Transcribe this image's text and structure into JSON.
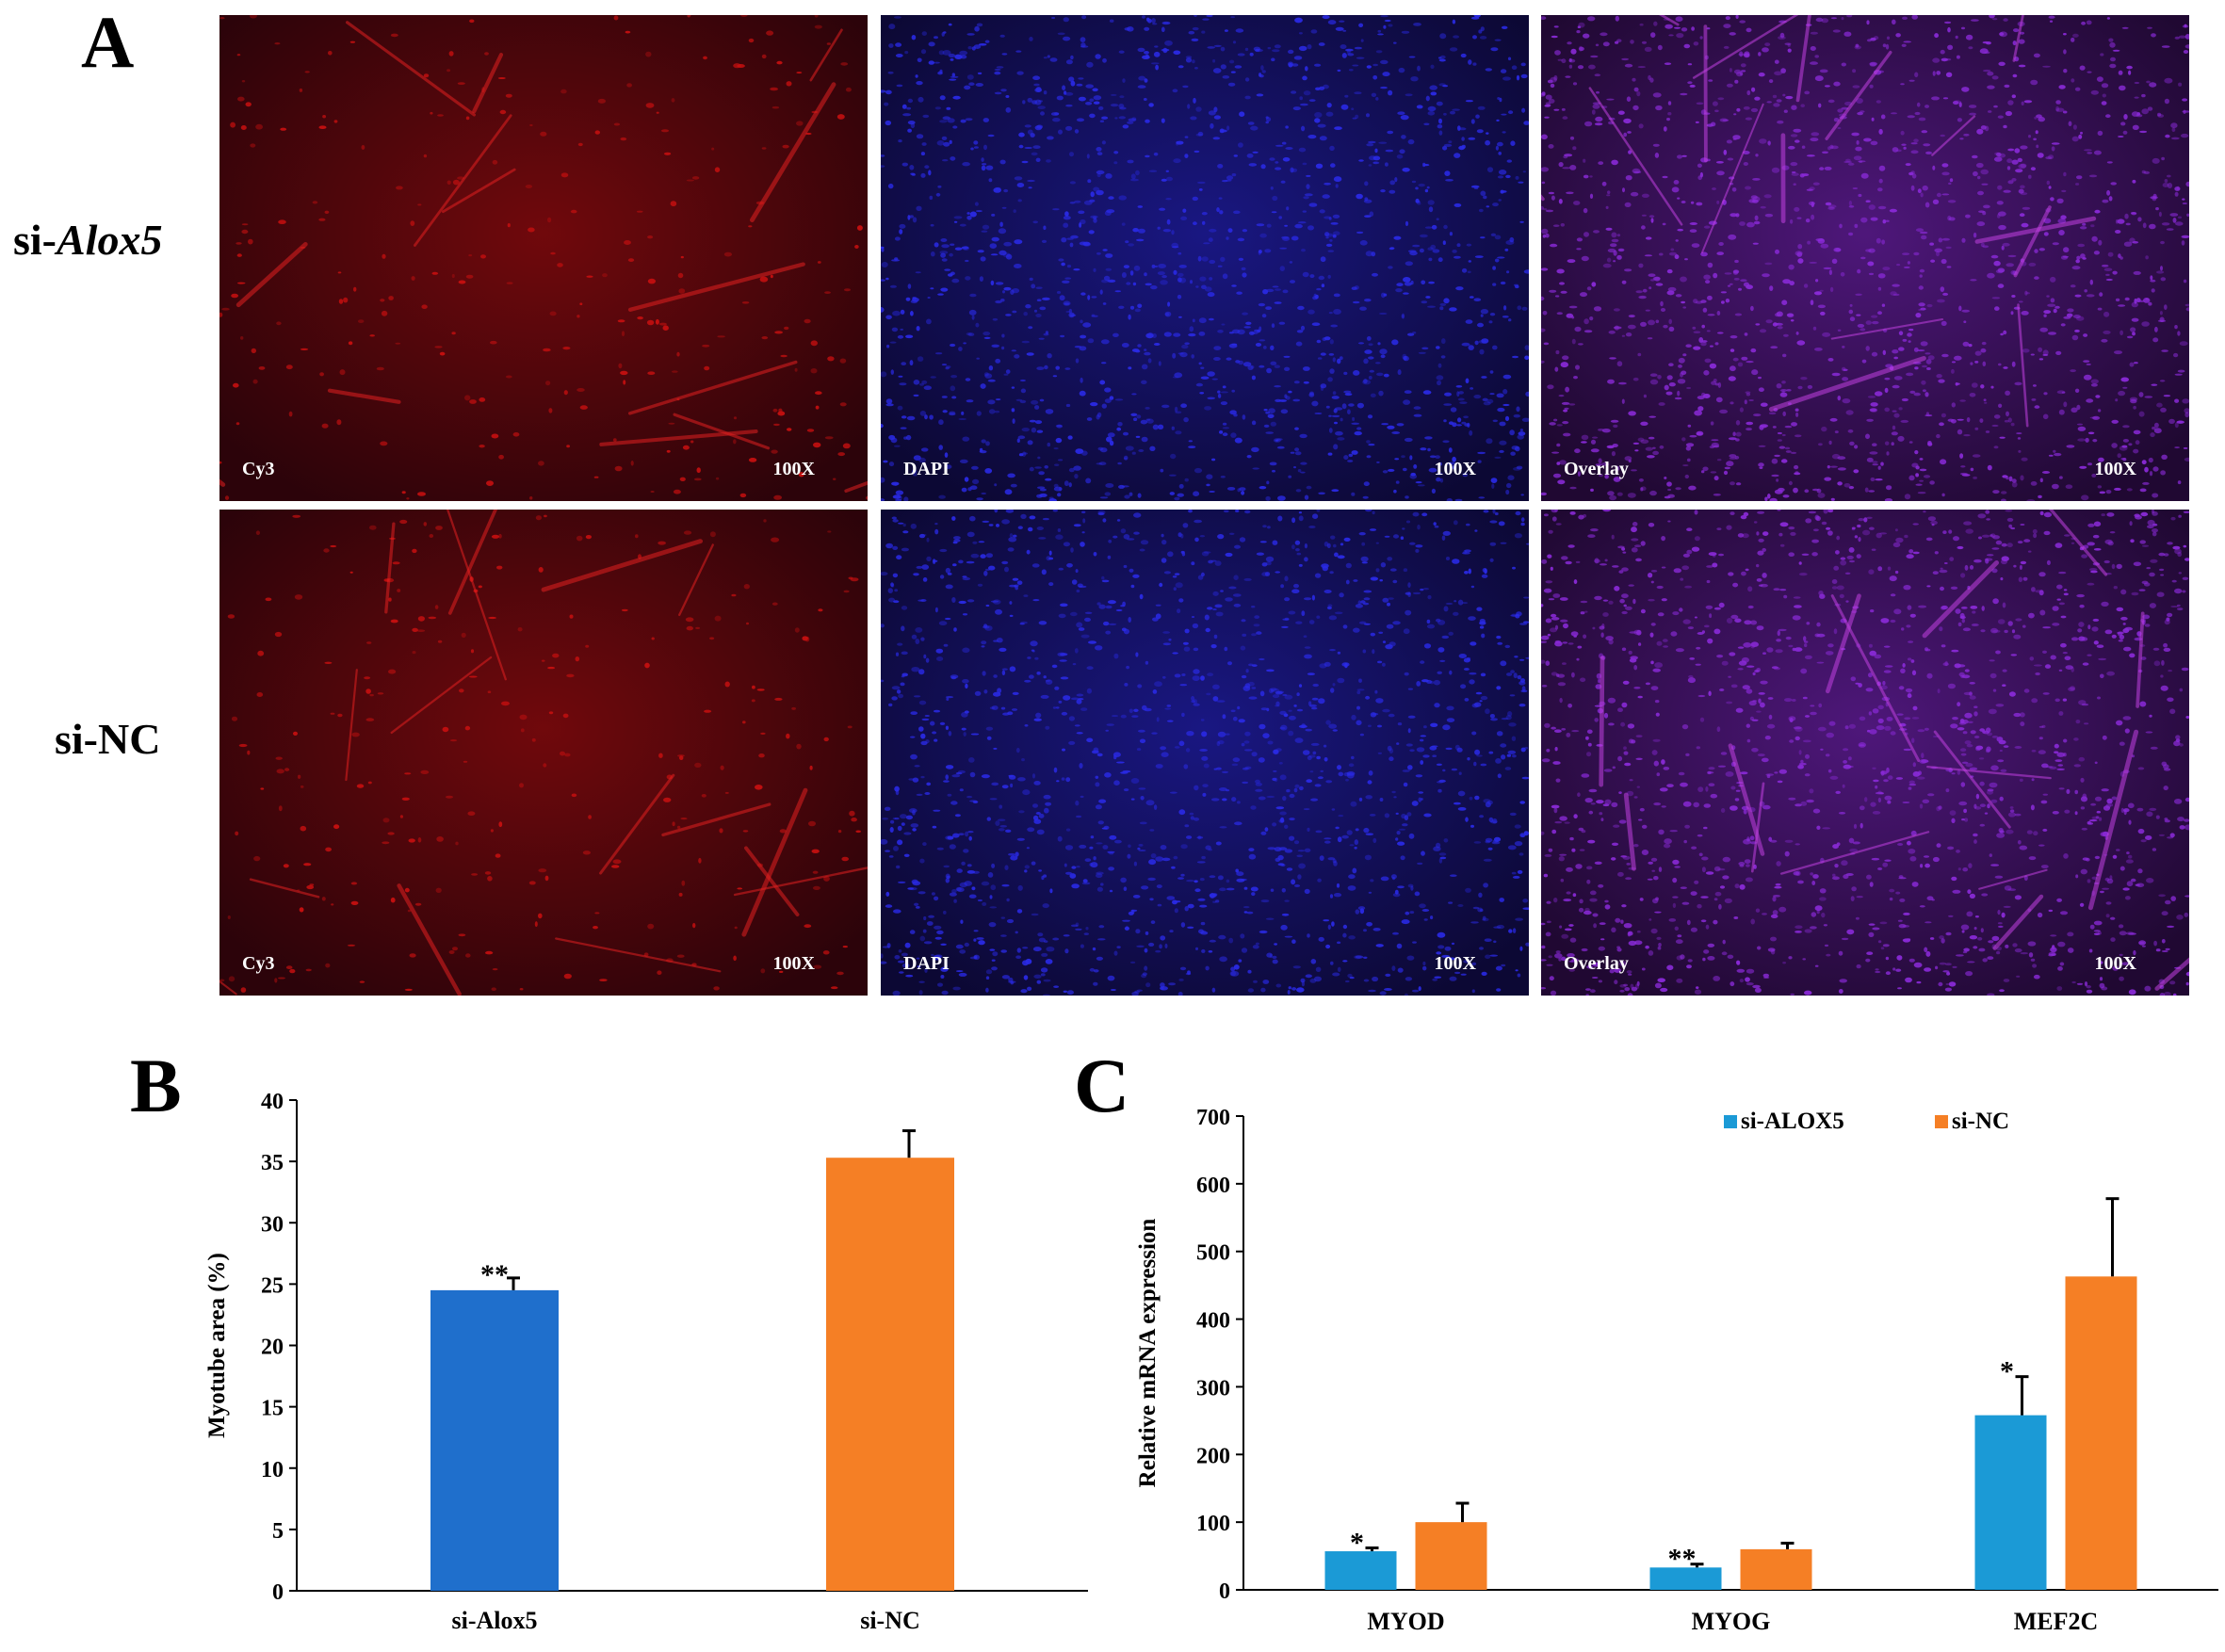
{
  "panel_a": {
    "letter": "A",
    "rows": [
      {
        "prefix": "si-",
        "gene": "Alox5"
      },
      {
        "prefix": "si-NC",
        "gene": ""
      }
    ],
    "images": [
      {
        "channel": "Cy3",
        "magnification": "100X",
        "color": "#c81010"
      },
      {
        "channel": "DAPI",
        "magnification": "100X",
        "color": "#2a2ae6"
      },
      {
        "channel": "Overlay",
        "magnification": "100X",
        "color": "#8a2ad8"
      },
      {
        "channel": "Cy3",
        "magnification": "100X",
        "color": "#c81010"
      },
      {
        "channel": "DAPI",
        "magnification": "100X",
        "color": "#2a2ae6"
      },
      {
        "channel": "Overlay",
        "magnification": "100X",
        "color": "#8a2ad8"
      }
    ]
  },
  "panel_b": {
    "letter": "B"
  },
  "panel_c": {
    "letter": "C"
  },
  "chart_data": [
    {
      "type": "bar",
      "ylabel": "Myotube area (%)",
      "categories": [
        "si-Alox5",
        "si-NC"
      ],
      "values": [
        24.5,
        35.3
      ],
      "errors": [
        1.0,
        2.2
      ],
      "significance": [
        "**",
        ""
      ],
      "colors": [
        "#1f6fcc",
        "#f57f25"
      ],
      "ylim": [
        0,
        40
      ],
      "yticks": [
        0,
        5,
        10,
        15,
        20,
        25,
        30,
        35,
        40
      ]
    },
    {
      "type": "bar",
      "ylabel": "Relative mRNA expression",
      "categories": [
        "MYOD",
        "MYOG",
        "MEF2C"
      ],
      "series": [
        {
          "name": "si-ALOX5",
          "color": "#1b9ad6",
          "values": [
            57,
            33,
            258
          ],
          "errors": [
            5,
            5,
            57
          ],
          "significance": [
            "*",
            "**",
            "*"
          ]
        },
        {
          "name": "si-NC",
          "color": "#f57f25",
          "values": [
            100,
            60,
            463
          ],
          "errors": [
            28,
            9,
            115
          ],
          "significance": [
            "",
            "",
            ""
          ]
        }
      ],
      "ylim": [
        0,
        700
      ],
      "yticks": [
        0,
        100,
        200,
        300,
        400,
        500,
        600,
        700
      ],
      "legend": "top"
    }
  ]
}
